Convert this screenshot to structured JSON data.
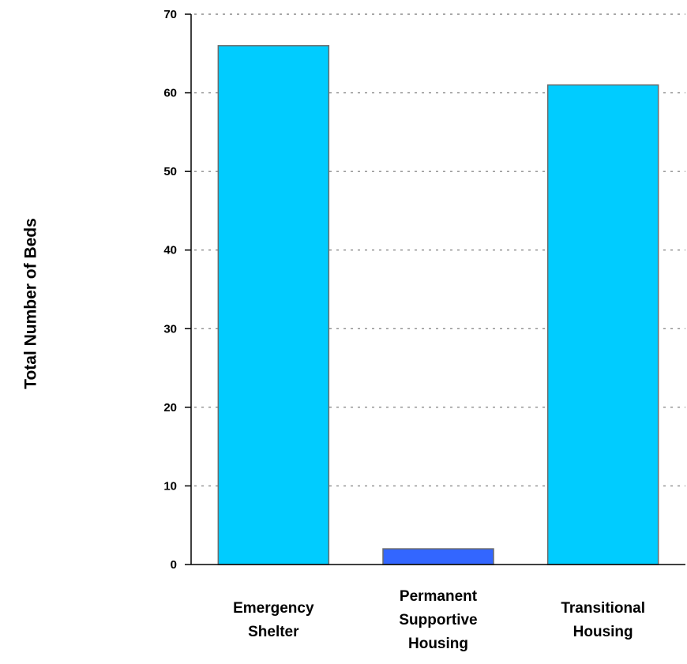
{
  "chart_data": {
    "type": "bar",
    "categories": [
      [
        "Emergency",
        "Shelter"
      ],
      [
        "Permanent",
        "Supportive",
        "Housing"
      ],
      [
        "Transitional",
        "Housing"
      ]
    ],
    "values": [
      66,
      2,
      61
    ],
    "bar_colors": [
      "#00ccff",
      "#3366ff",
      "#00ccff"
    ],
    "ylabel": "Total Number of Beds",
    "ylim": [
      0,
      70
    ],
    "yticks": [
      0,
      10,
      20,
      30,
      40,
      50,
      60,
      70
    ],
    "grid": true
  }
}
